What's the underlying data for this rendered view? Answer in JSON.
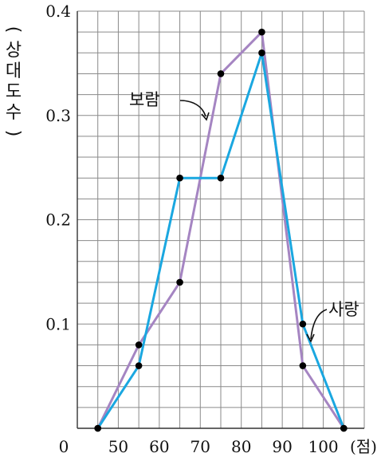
{
  "chart_data": {
    "type": "line",
    "x": [
      45,
      55,
      65,
      75,
      85,
      95,
      105
    ],
    "series": [
      {
        "name": "보람",
        "color": "#a585c2",
        "values": [
          0,
          0.08,
          0.14,
          0.34,
          0.38,
          0.06,
          0
        ]
      },
      {
        "name": "사랑",
        "color": "#1aa7e0",
        "values": [
          0,
          0.06,
          0.24,
          0.24,
          0.36,
          0.1,
          0
        ]
      }
    ],
    "xticks": [
      "50",
      "60",
      "70",
      "80",
      "90",
      "100"
    ],
    "xtick_values": [
      50,
      60,
      70,
      80,
      90,
      100
    ],
    "xunit": "(점)",
    "origin_label": "0",
    "yticks": [
      "0.1",
      "0.2",
      "0.3",
      "0.4"
    ],
    "ytick_values": [
      0.1,
      0.2,
      0.3,
      0.4
    ],
    "ylabel_chars": [
      "(",
      "상",
      "대",
      "도",
      "수",
      ")"
    ],
    "xlim": [
      40,
      110
    ],
    "ylim": [
      0,
      0.4
    ],
    "grid": true,
    "grid_minor_step_x": 5,
    "grid_minor_step_y": 0.02
  }
}
